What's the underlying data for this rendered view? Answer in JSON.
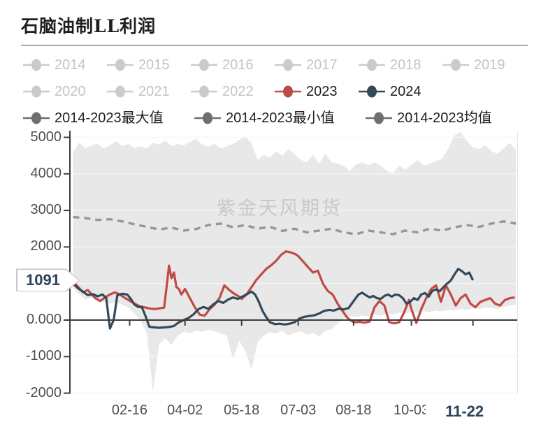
{
  "title": "石脑油制LL利润",
  "watermark": "紫金天风期货",
  "colors": {
    "red_2023": "#c04a45",
    "navy_2024": "#32495a",
    "band_fill": "#e8e8e8",
    "mean_line": "#969696",
    "muted_legend": "#cbcbcb",
    "muted_legend_text": "#c4c4c4",
    "stat_legend": "#6f6f6f",
    "active_text": "#1f1f1f",
    "axis": "#3c3c3c",
    "tick_text": "#4f4f4f",
    "pointer_text": "#2b4257"
  },
  "legend": {
    "rows": [
      [
        {
          "label": "2014",
          "marker": "#cbcbcb",
          "muted": true
        },
        {
          "label": "2015",
          "marker": "#cbcbcb",
          "muted": true
        },
        {
          "label": "2016",
          "marker": "#cbcbcb",
          "muted": true
        },
        {
          "label": "2017",
          "marker": "#cbcbcb",
          "muted": true
        },
        {
          "label": "2018",
          "marker": "#cbcbcb",
          "muted": true
        },
        {
          "label": "2019",
          "marker": "#cbcbcb",
          "muted": true
        }
      ],
      [
        {
          "label": "2020",
          "marker": "#cbcbcb",
          "muted": true
        },
        {
          "label": "2021",
          "marker": "#cbcbcb",
          "muted": true
        },
        {
          "label": "2022",
          "marker": "#cbcbcb",
          "muted": true
        },
        {
          "label": "2023",
          "marker": "#c04a45",
          "muted": false
        },
        {
          "label": "2024",
          "marker": "#32495a",
          "muted": false
        }
      ],
      [
        {
          "label": "2014-2023最大值",
          "marker": "#6f6f6f",
          "muted": false
        },
        {
          "label": "2014-2023最小值",
          "marker": "#6f6f6f",
          "muted": false
        },
        {
          "label": "2014-2023均值",
          "marker": "#6f6f6f",
          "muted": false
        }
      ]
    ]
  },
  "chart_data": {
    "type": "line",
    "title": "石脑油制LL利润",
    "x_unit": "day-of-year",
    "x_axis": {
      "ticks": [
        {
          "label": "02-16",
          "day": 46
        },
        {
          "label": "04-02",
          "day": 91
        },
        {
          "label": "05-18",
          "day": 137
        },
        {
          "label": "07-03",
          "day": 183
        },
        {
          "label": "08-18",
          "day": 228
        },
        {
          "label": "10-03",
          "day": 275
        },
        {
          "label": "11-22",
          "day": 325,
          "highlight": true
        }
      ]
    },
    "y_axis": {
      "min": -2000,
      "max": 5000,
      "ticks": [
        {
          "label": "5000",
          "value": 5000
        },
        {
          "label": "4000",
          "value": 4000
        },
        {
          "label": "3000",
          "value": 3000
        },
        {
          "label": "2000",
          "value": 2000
        },
        {
          "label": "0.000",
          "value": 0
        },
        {
          "label": "-1000",
          "value": -1000
        },
        {
          "label": "-2000",
          "value": -2000
        }
      ],
      "gridline_values": [
        5000,
        4000,
        3000,
        2000,
        1000,
        -1000,
        -2000
      ],
      "pointer_value": "1091"
    },
    "band": {
      "name": "2014-2023最大值/最小值",
      "fill": "#e8e8e8",
      "days": [
        0,
        5,
        10,
        15,
        20,
        25,
        30,
        35,
        40,
        45,
        50,
        55,
        60,
        65,
        70,
        75,
        80,
        85,
        90,
        95,
        100,
        105,
        110,
        115,
        120,
        125,
        130,
        135,
        140,
        145,
        150,
        155,
        160,
        165,
        170,
        175,
        180,
        185,
        190,
        195,
        200,
        205,
        210,
        215,
        220,
        225,
        230,
        235,
        240,
        245,
        250,
        255,
        260,
        265,
        270,
        275,
        280,
        285,
        290,
        295,
        300,
        305,
        310,
        315,
        320,
        325,
        330,
        335,
        340,
        345,
        350,
        355,
        360
      ],
      "max": [
        4600,
        4850,
        4700,
        4780,
        4820,
        4700,
        4780,
        4900,
        4760,
        4820,
        4700,
        4760,
        4700,
        4850,
        4800,
        4920,
        4760,
        4820,
        4780,
        4870,
        4960,
        4800,
        4740,
        4820,
        4700,
        4760,
        4820,
        4930,
        5020,
        4850,
        4380,
        4520,
        4440,
        4620,
        4500,
        4680,
        4550,
        4380,
        4320,
        4520,
        4280,
        4550,
        4320,
        4280,
        4220,
        4080,
        4260,
        4320,
        4240,
        4320,
        4220,
        4080,
        4020,
        4220,
        4120,
        4240,
        4380,
        4220,
        4280,
        4350,
        4420,
        4700,
        5050,
        5150,
        4900,
        4720,
        4680,
        4780,
        4620,
        4550,
        4700,
        4850,
        4650
      ],
      "min": [
        880,
        700,
        560,
        610,
        540,
        500,
        450,
        500,
        420,
        340,
        180,
        -20,
        -350,
        -1950,
        -650,
        -500,
        -680,
        -420,
        -320,
        -360,
        -280,
        -320,
        -260,
        -310,
        -360,
        -430,
        -1080,
        -560,
        -850,
        -1350,
        -600,
        -430,
        -330,
        -370,
        -290,
        -420,
        -350,
        -300,
        -400,
        -350,
        -450,
        -300,
        -250,
        -100,
        50,
        100,
        80,
        130,
        100,
        150,
        120,
        180,
        150,
        200,
        180,
        220,
        200,
        250,
        220,
        260,
        240,
        280,
        260,
        300,
        280,
        330,
        300,
        350,
        330,
        300,
        360,
        400,
        420
      ]
    },
    "series": [
      {
        "name": "2014-2023均值",
        "style": "dashed",
        "color": "#969696",
        "days": [
          0,
          10,
          20,
          30,
          40,
          50,
          60,
          70,
          80,
          90,
          100,
          110,
          120,
          130,
          140,
          150,
          160,
          170,
          180,
          190,
          200,
          210,
          220,
          230,
          240,
          250,
          260,
          270,
          280,
          290,
          300,
          310,
          320,
          330,
          340,
          350,
          360
        ],
        "values": [
          2820,
          2790,
          2740,
          2760,
          2700,
          2620,
          2550,
          2480,
          2530,
          2450,
          2490,
          2600,
          2640,
          2540,
          2600,
          2500,
          2550,
          2440,
          2500,
          2400,
          2450,
          2500,
          2400,
          2350,
          2450,
          2400,
          2350,
          2450,
          2400,
          2500,
          2450,
          2540,
          2600,
          2550,
          2640,
          2700,
          2640
        ]
      },
      {
        "name": "2023",
        "style": "solid",
        "color": "#c04a45",
        "days": [
          0,
          3,
          8,
          12,
          18,
          22,
          26,
          30,
          34,
          38,
          42,
          46,
          50,
          54,
          58,
          62,
          66,
          70,
          74,
          76,
          78,
          80,
          82,
          84,
          86,
          88,
          91,
          95,
          99,
          103,
          107,
          111,
          115,
          119,
          123,
          127,
          131,
          135,
          137,
          141,
          145,
          149,
          153,
          157,
          161,
          165,
          169,
          173,
          177,
          181,
          183,
          187,
          191,
          195,
          199,
          203,
          207,
          211,
          215,
          219,
          223,
          227,
          229,
          233,
          237,
          241,
          245,
          249,
          253,
          257,
          261,
          265,
          269,
          273,
          275,
          279,
          283,
          287,
          291,
          295,
          299,
          303,
          307,
          311,
          315,
          319,
          323,
          327,
          331,
          335,
          339,
          343,
          347,
          351,
          355,
          359
        ],
        "values": [
          1050,
          950,
          760,
          820,
          600,
          520,
          620,
          700,
          760,
          700,
          610,
          530,
          450,
          380,
          350,
          320,
          300,
          320,
          340,
          900,
          1490,
          1150,
          1300,
          900,
          850,
          700,
          850,
          600,
          350,
          150,
          120,
          300,
          420,
          600,
          950,
          820,
          720,
          640,
          580,
          700,
          900,
          1100,
          1250,
          1400,
          1500,
          1620,
          1780,
          1880,
          1850,
          1800,
          1750,
          1600,
          1450,
          1300,
          1350,
          1000,
          800,
          700,
          450,
          250,
          60,
          -40,
          -60,
          -50,
          -70,
          -40,
          350,
          520,
          400,
          -60,
          -90,
          -60,
          200,
          550,
          300,
          -80,
          300,
          600,
          850,
          950,
          500,
          950,
          700,
          400,
          600,
          700,
          450,
          350,
          500,
          550,
          600,
          450,
          400,
          550,
          600,
          620
        ]
      },
      {
        "name": "2024",
        "style": "solid",
        "color": "#32495a",
        "last_value": 1091,
        "days": [
          0,
          4,
          8,
          12,
          16,
          20,
          24,
          27,
          30,
          33,
          36,
          40,
          44,
          47,
          50,
          53,
          56,
          59,
          62,
          66,
          70,
          74,
          78,
          82,
          86,
          90,
          94,
          98,
          102,
          106,
          110,
          114,
          118,
          122,
          126,
          130,
          134,
          138,
          142,
          145,
          148,
          151,
          154,
          157,
          160,
          164,
          168,
          172,
          176,
          180,
          184,
          188,
          192,
          196,
          200,
          204,
          208,
          212,
          216,
          220,
          224,
          228,
          232,
          235,
          238,
          241,
          244,
          247,
          250,
          253,
          256,
          259,
          262,
          265,
          268,
          271,
          274,
          277,
          280,
          283,
          286,
          289,
          292,
          295,
          298,
          301,
          304,
          307,
          310,
          313,
          316,
          319,
          322,
          325
        ],
        "values": [
          1000,
          870,
          780,
          680,
          710,
          650,
          700,
          600,
          -230,
          0,
          680,
          720,
          700,
          580,
          420,
          360,
          350,
          100,
          -180,
          -200,
          -210,
          -200,
          -190,
          -160,
          -60,
          0,
          60,
          160,
          300,
          360,
          310,
          430,
          520,
          470,
          560,
          620,
          580,
          650,
          720,
          780,
          700,
          500,
          250,
          80,
          -60,
          -110,
          -100,
          -120,
          -100,
          -60,
          40,
          90,
          110,
          130,
          180,
          250,
          280,
          260,
          310,
          290,
          330,
          520,
          700,
          750,
          680,
          620,
          660,
          600,
          580,
          660,
          700,
          640,
          700,
          680,
          600,
          450,
          500,
          600,
          550,
          700,
          740,
          640,
          800,
          840,
          790,
          900,
          1000,
          1080,
          1250,
          1400,
          1340,
          1250,
          1300,
          1091
        ]
      }
    ]
  }
}
